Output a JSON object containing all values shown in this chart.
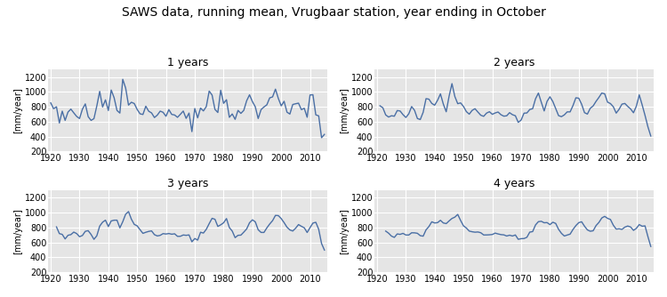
{
  "title": "SAWS data, running mean, Vrugbaar station, year ending in October",
  "subplot_titles": [
    "1 years",
    "2 years",
    "3 years",
    "4 years"
  ],
  "ylabel": "[mm/year]",
  "ylim": [
    200,
    1300
  ],
  "yticks": [
    200,
    400,
    600,
    800,
    1000,
    1200
  ],
  "xlim": [
    1919,
    2016
  ],
  "xticks": [
    1920,
    1930,
    1940,
    1950,
    1960,
    1970,
    1980,
    1990,
    2000,
    2010
  ],
  "line_color": "#4a6fa5",
  "line_width": 1.0,
  "bg_color": "#e5e5e5",
  "title_fontsize": 10,
  "subplot_title_fontsize": 9,
  "tick_fontsize": 7,
  "ylabel_fontsize": 7,
  "raw_data": [
    [
      1920,
      853
    ],
    [
      1921,
      775
    ],
    [
      1922,
      800
    ],
    [
      1923,
      583
    ],
    [
      1924,
      742
    ],
    [
      1925,
      618
    ],
    [
      1926,
      730
    ],
    [
      1927,
      769
    ],
    [
      1928,
      719
    ],
    [
      1929,
      671
    ],
    [
      1930,
      643
    ],
    [
      1931,
      768
    ],
    [
      1932,
      839
    ],
    [
      1933,
      668
    ],
    [
      1934,
      618
    ],
    [
      1935,
      641
    ],
    [
      1936,
      812
    ],
    [
      1937,
      1007
    ],
    [
      1938,
      798
    ],
    [
      1939,
      893
    ],
    [
      1940,
      750
    ],
    [
      1941,
      1025
    ],
    [
      1942,
      922
    ],
    [
      1943,
      751
    ],
    [
      1944,
      716
    ],
    [
      1945,
      1169
    ],
    [
      1946,
      1053
    ],
    [
      1947,
      823
    ],
    [
      1948,
      861
    ],
    [
      1949,
      844
    ],
    [
      1950,
      765
    ],
    [
      1951,
      706
    ],
    [
      1952,
      697
    ],
    [
      1953,
      808
    ],
    [
      1954,
      741
    ],
    [
      1955,
      718
    ],
    [
      1956,
      656
    ],
    [
      1957,
      689
    ],
    [
      1958,
      742
    ],
    [
      1959,
      726
    ],
    [
      1960,
      673
    ],
    [
      1961,
      762
    ],
    [
      1962,
      698
    ],
    [
      1963,
      690
    ],
    [
      1964,
      659
    ],
    [
      1965,
      700
    ],
    [
      1966,
      743
    ],
    [
      1967,
      645
    ],
    [
      1968,
      716
    ],
    [
      1969,
      467
    ],
    [
      1970,
      777
    ],
    [
      1971,
      652
    ],
    [
      1972,
      783
    ],
    [
      1973,
      745
    ],
    [
      1974,
      804
    ],
    [
      1975,
      1011
    ],
    [
      1976,
      958
    ],
    [
      1977,
      765
    ],
    [
      1978,
      724
    ],
    [
      1979,
      1022
    ],
    [
      1980,
      847
    ],
    [
      1981,
      895
    ],
    [
      1982,
      659
    ],
    [
      1983,
      704
    ],
    [
      1984,
      632
    ],
    [
      1985,
      752
    ],
    [
      1986,
      712
    ],
    [
      1987,
      752
    ],
    [
      1988,
      881
    ],
    [
      1989,
      961
    ],
    [
      1990,
      870
    ],
    [
      1991,
      800
    ],
    [
      1992,
      643
    ],
    [
      1993,
      762
    ],
    [
      1994,
      798
    ],
    [
      1995,
      826
    ],
    [
      1996,
      920
    ],
    [
      1997,
      933
    ],
    [
      1998,
      1037
    ],
    [
      1999,
      912
    ],
    [
      2000,
      813
    ],
    [
      2001,
      874
    ],
    [
      2002,
      728
    ],
    [
      2003,
      703
    ],
    [
      2004,
      831
    ],
    [
      2005,
      841
    ],
    [
      2006,
      849
    ],
    [
      2007,
      762
    ],
    [
      2008,
      780
    ],
    [
      2009,
      660
    ],
    [
      2010,
      959
    ],
    [
      2011,
      962
    ],
    [
      2012,
      692
    ],
    [
      2013,
      679
    ],
    [
      2014,
      386
    ],
    [
      2015,
      430
    ]
  ]
}
